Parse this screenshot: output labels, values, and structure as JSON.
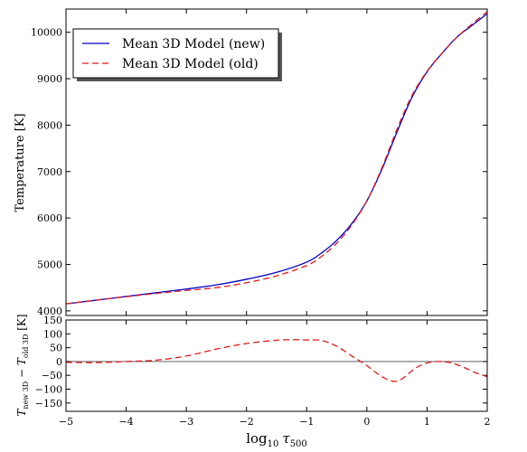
{
  "chart_data": [
    {
      "type": "line",
      "ylabel": "Temperature [K]",
      "xlim": [
        -5,
        2
      ],
      "ylim": [
        3900,
        10500
      ],
      "x_ticks": [
        -5,
        -4,
        -3,
        -2,
        -1,
        0,
        1,
        2
      ],
      "y_ticks": [
        4000,
        5000,
        6000,
        7000,
        8000,
        9000,
        10000
      ],
      "legend": {
        "placement": "top-left"
      },
      "series": [
        {
          "name": "Mean 3D Model (new)",
          "style": "solid",
          "color": "#0000cc",
          "x": [
            -5,
            -4.5,
            -4,
            -3.5,
            -3,
            -2.5,
            -2,
            -1.5,
            -1,
            -0.75,
            -0.5,
            -0.25,
            0,
            0.25,
            0.5,
            0.75,
            1,
            1.25,
            1.5,
            1.75,
            2
          ],
          "y": [
            4150,
            4230,
            4310,
            4390,
            4470,
            4560,
            4680,
            4830,
            5050,
            5250,
            5520,
            5880,
            6370,
            7050,
            7850,
            8600,
            9150,
            9550,
            9900,
            10150,
            10400
          ]
        },
        {
          "name": "Mean 3D Model (old)",
          "style": "dashed",
          "color": "#e41a1c",
          "x": [
            -5,
            -4.5,
            -4,
            -3.5,
            -3,
            -2.5,
            -2,
            -1.5,
            -1,
            -0.75,
            -0.5,
            -0.25,
            0,
            0.25,
            0.5,
            0.75,
            1,
            1.25,
            1.5,
            1.75,
            2
          ],
          "y": [
            4150,
            4230,
            4305,
            4375,
            4440,
            4500,
            4605,
            4755,
            4975,
            5175,
            5460,
            5850,
            6370,
            7080,
            7910,
            8640,
            9160,
            9550,
            9895,
            10180,
            10445
          ]
        }
      ]
    },
    {
      "type": "line",
      "xlabel_main": "log",
      "xlabel_sub": "10",
      "xlabel_var": "τ",
      "xlabel_var_sub": "500",
      "ylabel_main": "T",
      "ylabel_sub1": "new 3D",
      "ylabel_mid": " − T",
      "ylabel_sub2": "old 3D",
      "ylabel_unit": " [K]",
      "xlim": [
        -5,
        2
      ],
      "ylim": [
        -180,
        150
      ],
      "x_ticks": [
        -5,
        -4,
        -3,
        -2,
        -1,
        0,
        1,
        2
      ],
      "y_ticks": [
        -150,
        -100,
        -50,
        0,
        50,
        100,
        150
      ],
      "y_tick_labels": [
        "−150",
        "−100",
        "−50",
        "0",
        "50",
        "100",
        "150"
      ],
      "x_tick_labels": [
        "−5",
        "−4",
        "−3",
        "−2",
        "−1",
        "0",
        "1",
        "2"
      ],
      "reference_line": 0,
      "series": [
        {
          "style": "dashed",
          "color": "#e41a1c",
          "x": [
            -5,
            -4.5,
            -4,
            -3.5,
            -3,
            -2.5,
            -2,
            -1.5,
            -1.2,
            -1,
            -0.75,
            -0.5,
            -0.25,
            0,
            0.25,
            0.45,
            0.6,
            0.8,
            1,
            1.2,
            1.4,
            1.6,
            1.8,
            2
          ],
          "y": [
            -3,
            -4,
            0,
            5,
            20,
            45,
            65,
            77,
            79,
            78,
            76,
            55,
            20,
            -15,
            -55,
            -72,
            -60,
            -25,
            -5,
            0,
            -5,
            -20,
            -40,
            -55
          ]
        }
      ]
    }
  ]
}
